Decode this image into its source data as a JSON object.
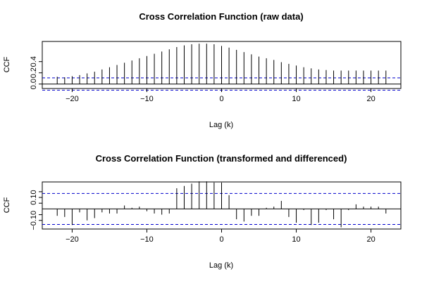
{
  "chart_data": [
    {
      "type": "bar",
      "title": "Cross Correlation Function (raw data)",
      "xlabel": "Lag (k)",
      "ylabel": "CCF",
      "xlim": [
        -24,
        24
      ],
      "ylim": [
        -0.08,
        0.76
      ],
      "x_ticks": [
        -20,
        -10,
        0,
        10,
        20
      ],
      "y_ticks": [
        0.0,
        0.2,
        0.4
      ],
      "y_tick_labels": [
        "0.0",
        "0.2",
        "0.4"
      ],
      "confidence_band": [
        0.11,
        -0.11
      ],
      "band_color": "#0000cc",
      "grid": false,
      "x": [
        -22,
        -21,
        -20,
        -19,
        -18,
        -17,
        -16,
        -15,
        -14,
        -13,
        -12,
        -11,
        -10,
        -9,
        -8,
        -7,
        -6,
        -5,
        -4,
        -3,
        -2,
        -1,
        0,
        1,
        2,
        3,
        4,
        5,
        6,
        7,
        8,
        9,
        10,
        11,
        12,
        13,
        14,
        15,
        16,
        17,
        18,
        19,
        20,
        21,
        22
      ],
      "values": [
        0.13,
        0.12,
        0.14,
        0.16,
        0.19,
        0.22,
        0.26,
        0.3,
        0.34,
        0.38,
        0.42,
        0.46,
        0.5,
        0.54,
        0.58,
        0.62,
        0.66,
        0.69,
        0.71,
        0.72,
        0.72,
        0.71,
        0.68,
        0.65,
        0.61,
        0.57,
        0.53,
        0.49,
        0.46,
        0.43,
        0.39,
        0.36,
        0.33,
        0.3,
        0.28,
        0.26,
        0.25,
        0.24,
        0.24,
        0.24,
        0.24,
        0.24,
        0.24,
        0.24,
        0.24
      ]
    },
    {
      "type": "bar",
      "title": "Cross Correlation Function (transformed and differenced)",
      "xlabel": "Lag (k)",
      "ylabel": "CCF",
      "xlim": [
        -24,
        24
      ],
      "ylim": [
        -0.175,
        0.235
      ],
      "x_ticks": [
        -20,
        -10,
        0,
        10,
        20
      ],
      "y_ticks": [
        -0.1,
        0.1
      ],
      "y_tick_labels": [
        "-0.10",
        "0.10"
      ],
      "y_minor_ticks": [
        -0.05,
        0.05,
        0.15
      ],
      "confidence_band": [
        0.135,
        -0.135
      ],
      "band_color": "#0000cc",
      "grid": false,
      "x": [
        -22,
        -21,
        -20,
        -19,
        -18,
        -17,
        -16,
        -15,
        -14,
        -13,
        -12,
        -11,
        -10,
        -9,
        -8,
        -7,
        -6,
        -5,
        -4,
        -3,
        -2,
        -1,
        0,
        1,
        2,
        3,
        4,
        5,
        6,
        7,
        8,
        9,
        10,
        11,
        12,
        13,
        14,
        15,
        16,
        17,
        18,
        19,
        20,
        21,
        22
      ],
      "values": [
        -0.06,
        -0.07,
        -0.14,
        -0.03,
        -0.1,
        -0.08,
        -0.03,
        -0.04,
        -0.04,
        0.03,
        0.01,
        0.02,
        -0.02,
        -0.04,
        -0.05,
        -0.04,
        0.18,
        0.2,
        0.22,
        0.24,
        0.24,
        0.23,
        0.23,
        0.12,
        -0.09,
        -0.11,
        -0.06,
        -0.06,
        0.01,
        0.02,
        0.07,
        -0.07,
        -0.12,
        -0.01,
        -0.14,
        -0.12,
        -0.01,
        -0.09,
        -0.16,
        -0.01,
        0.04,
        0.02,
        0.02,
        0.02,
        -0.04
      ]
    }
  ]
}
